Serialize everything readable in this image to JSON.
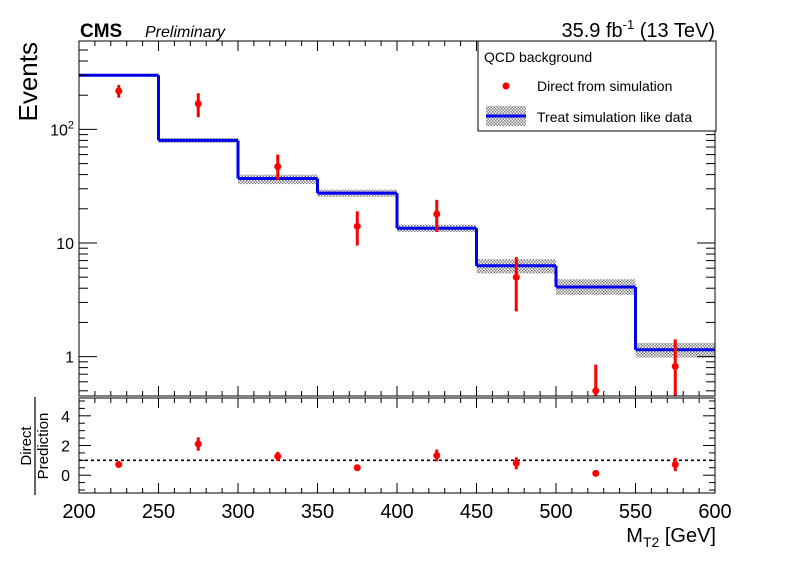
{
  "header": {
    "experiment": "CMS",
    "status": "Preliminary",
    "lumi_value": "35.9 fb",
    "lumi_exponent": "-1",
    "energy": "(13 TeV)"
  },
  "colors": {
    "histogram": "#0000ee",
    "points": "#ff0000",
    "band": "#888888",
    "axes": "#000000"
  },
  "chart_data": [
    {
      "type": "line",
      "panel": "main",
      "ylabel": "Events",
      "yscale": "log",
      "xlim": [
        200,
        600
      ],
      "ylim": [
        0.45,
        600
      ],
      "ytick_labels": [
        {
          "value": 1,
          "label": "1"
        },
        {
          "value": 10,
          "label": "10"
        },
        {
          "value": 100,
          "label": "10",
          "exponent": "2"
        }
      ],
      "legend": {
        "placement": "top-right",
        "title": "QCD background",
        "entries": [
          {
            "label": "Direct from simulation",
            "style": "marker"
          },
          {
            "label": "Treat simulation like data",
            "style": "line+band"
          }
        ]
      },
      "bin_edges": [
        200,
        250,
        300,
        350,
        400,
        450,
        500,
        550,
        600
      ],
      "series": [
        {
          "name": "Treat simulation like data",
          "style": "step",
          "values": [
            300,
            80,
            37,
            27.5,
            13.5,
            6.3,
            4.1,
            1.15
          ],
          "band_low": [
            300,
            76,
            33,
            25.5,
            12.5,
            5.4,
            3.5,
            0.98
          ],
          "band_high": [
            300,
            84,
            40,
            29.5,
            14.5,
            7.2,
            4.8,
            1.32
          ]
        },
        {
          "name": "Direct from simulation",
          "style": "points",
          "x": [
            225,
            275,
            325,
            375,
            425,
            475,
            525,
            575
          ],
          "y": [
            218,
            168,
            47,
            14,
            18,
            5,
            0.5,
            0.82
          ],
          "yerr_low": [
            28,
            40,
            11,
            4.5,
            5.5,
            2.5,
            0.05,
            0.45
          ],
          "yerr_high": [
            28,
            40,
            13,
            5,
            6,
            2.5,
            0.35,
            0.6
          ]
        }
      ]
    },
    {
      "type": "scatter",
      "panel": "ratio",
      "ylabel_top": "Direct",
      "ylabel_bottom": "Prediction",
      "xlabel": "M",
      "xlabel_sub": "T2",
      "xlabel_unit": "[GeV]",
      "xlim": [
        200,
        600
      ],
      "ylim": [
        -1.2,
        5.2
      ],
      "x_ticks": [
        200,
        250,
        300,
        350,
        400,
        450,
        500,
        550,
        600
      ],
      "y_ticks": [
        0,
        2,
        4
      ],
      "reference_line": 1,
      "x": [
        225,
        275,
        325,
        375,
        425,
        475,
        525,
        575
      ],
      "y": [
        0.72,
        2.1,
        1.27,
        0.5,
        1.33,
        0.8,
        0.12,
        0.72
      ],
      "yerr": [
        0.1,
        0.45,
        0.3,
        0.15,
        0.4,
        0.4,
        0.1,
        0.45
      ]
    }
  ]
}
